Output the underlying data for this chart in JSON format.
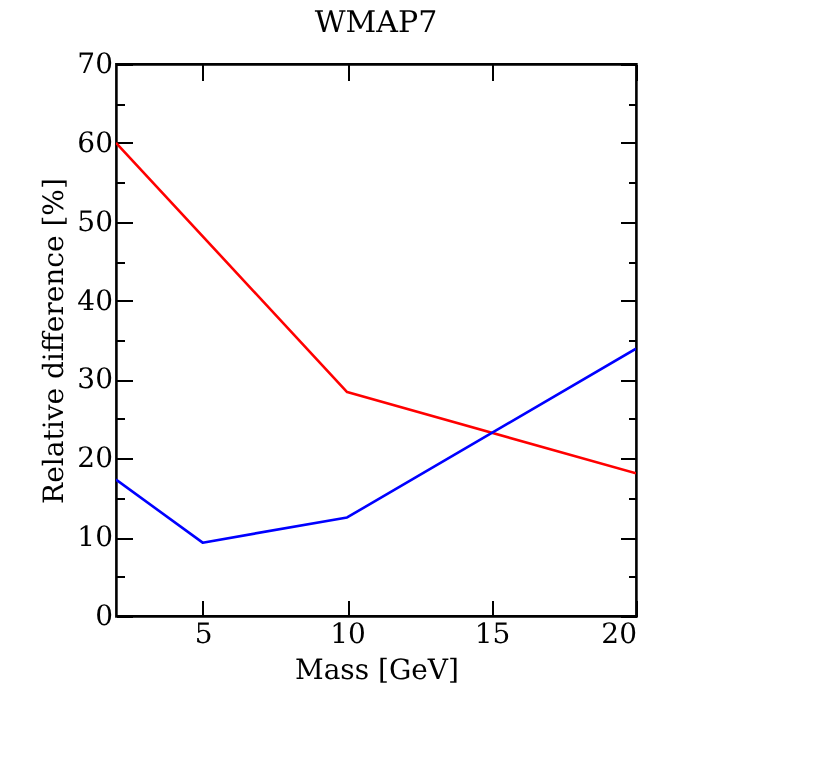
{
  "chart_data": {
    "type": "line",
    "title": "WMAP7",
    "xlabel": "Mass [GeV]",
    "ylabel": "Relative difference [%]",
    "series": [
      {
        "color": "#ff0000",
        "x": [
          2,
          10,
          20
        ],
        "values": [
          60.0,
          28.4,
          18.1
        ]
      },
      {
        "color": "#0000ff",
        "x": [
          2,
          5,
          10,
          20
        ],
        "values": [
          17.3,
          9.3,
          12.5,
          33.9
        ]
      }
    ],
    "xlim": [
      2,
      20
    ],
    "xticks": [
      5,
      10,
      15,
      20
    ],
    "ylim": [
      0,
      70
    ],
    "yticks": [
      0,
      {
        "value": 5,
        "label": null
      },
      10,
      {
        "value": 15,
        "label": null
      },
      20,
      {
        "value": 25,
        "label": null
      },
      30,
      {
        "value": 35,
        "label": null
      },
      40,
      {
        "value": 45,
        "label": null
      },
      50,
      {
        "value": 55,
        "label": null
      },
      60,
      {
        "value": 65,
        "label": null
      },
      70
    ],
    "grid": false,
    "legend": false,
    "marker": "none",
    "line_style": "solid"
  }
}
